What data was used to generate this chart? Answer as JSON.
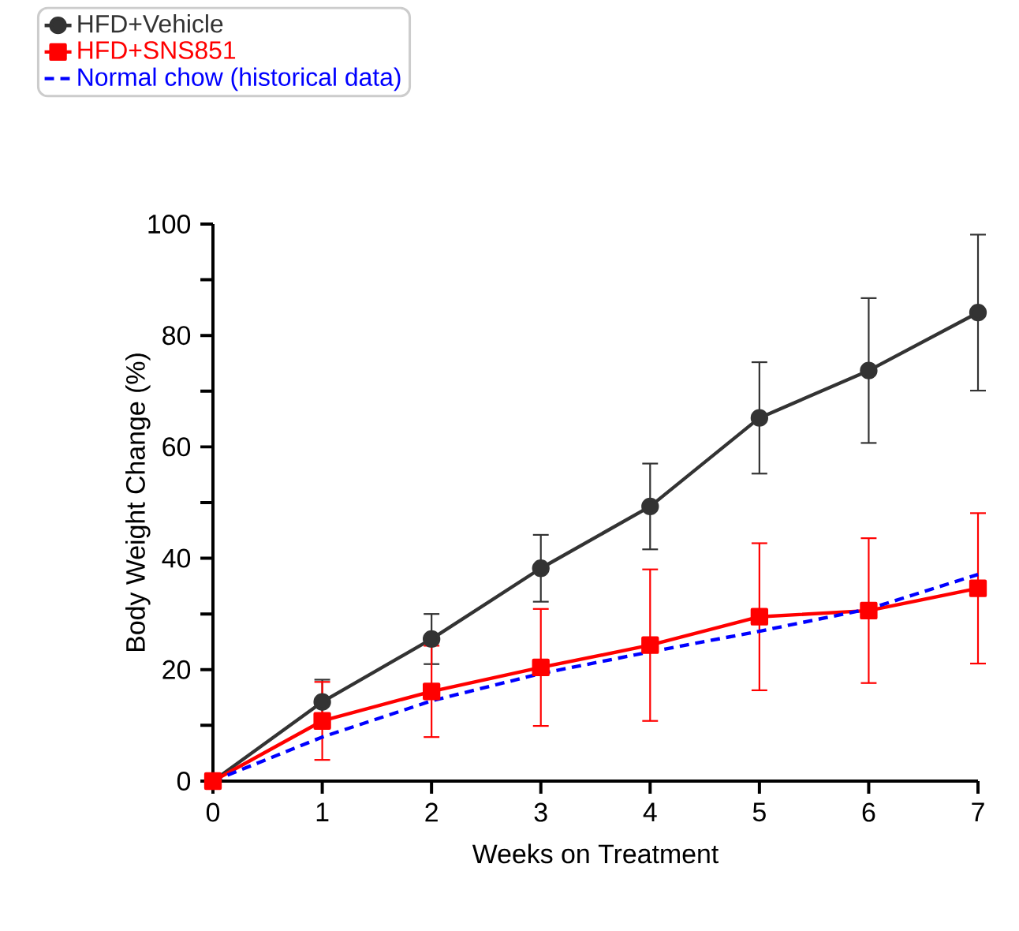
{
  "chart_data": {
    "type": "line",
    "xlabel": "Weeks on Treatment",
    "ylabel": "Body Weight Change (%)",
    "x": [
      0,
      1,
      2,
      3,
      4,
      5,
      6,
      7
    ],
    "series": [
      {
        "name": "HFD+Vehicle",
        "color": "#333333",
        "marker": "circle",
        "line_style": "solid",
        "values": [
          0,
          14.2,
          25.5,
          38.2,
          49.3,
          65.2,
          73.7,
          84.1
        ],
        "errors": [
          null,
          4,
          4.5,
          6,
          7.7,
          10,
          13,
          14
        ]
      },
      {
        "name": "HFD+SNS851",
        "color": "#ff0000",
        "marker": "square",
        "line_style": "solid",
        "values": [
          0,
          10.8,
          16.1,
          20.4,
          24.4,
          29.5,
          30.6,
          34.6
        ],
        "errors": [
          null,
          7,
          8.2,
          10.5,
          13.6,
          13.2,
          13,
          13.5
        ]
      },
      {
        "name": "Normal chow (historical data)",
        "color": "#0000ff",
        "marker": "none",
        "line_style": "dashed",
        "values": [
          0,
          7.9,
          14.4,
          19.3,
          23.2,
          26.9,
          30.9,
          37.1
        ]
      }
    ],
    "xlim": [
      0,
      7
    ],
    "xticks": [
      0,
      1,
      2,
      3,
      4,
      5,
      6,
      7
    ],
    "ylim": [
      0,
      100
    ],
    "yticks": [
      0,
      {
        "value": 10,
        "label": null
      },
      20,
      {
        "value": 30,
        "label": null
      },
      40,
      {
        "value": 50,
        "label": null
      },
      60,
      {
        "value": 70,
        "label": null
      },
      80,
      {
        "value": 90,
        "label": null
      },
      100
    ],
    "grid": false,
    "legend": "top left"
  }
}
